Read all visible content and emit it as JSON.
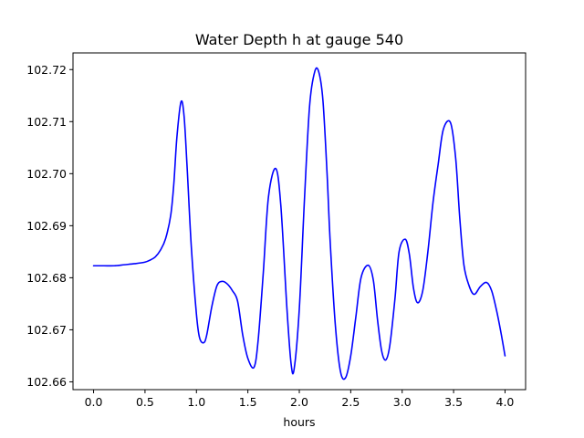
{
  "chart_data": {
    "type": "line",
    "title": "Water Depth h at gauge 540",
    "xlabel": "hours",
    "ylabel": "",
    "xlim": [
      -0.2,
      4.2
    ],
    "ylim": [
      102.6585,
      102.7232
    ],
    "xticks": [
      0.0,
      0.5,
      1.0,
      1.5,
      2.0,
      2.5,
      3.0,
      3.5,
      4.0
    ],
    "xtick_labels": [
      "0.0",
      "0.5",
      "1.0",
      "1.5",
      "2.0",
      "2.5",
      "3.0",
      "3.5",
      "4.0"
    ],
    "yticks": [
      102.66,
      102.67,
      102.68,
      102.69,
      102.7,
      102.71,
      102.72
    ],
    "ytick_labels": [
      "102.66",
      "102.67",
      "102.68",
      "102.69",
      "102.70",
      "102.71",
      "102.72"
    ],
    "grid": false,
    "color": "#0000ff",
    "series": [
      {
        "x": [
          0.0,
          0.1,
          0.2,
          0.3,
          0.4,
          0.5,
          0.55,
          0.6,
          0.65,
          0.7,
          0.75,
          0.78,
          0.81,
          0.85,
          0.88,
          0.91,
          0.95,
          1.0,
          1.03,
          1.07,
          1.1,
          1.15,
          1.2,
          1.25,
          1.3,
          1.35,
          1.4,
          1.45,
          1.5,
          1.56,
          1.6,
          1.65,
          1.7,
          1.77,
          1.82,
          1.88,
          1.92,
          1.95,
          2.0,
          2.05,
          2.1,
          2.15,
          2.19,
          2.23,
          2.27,
          2.3,
          2.35,
          2.4,
          2.45,
          2.5,
          2.55,
          2.6,
          2.67,
          2.72,
          2.76,
          2.8,
          2.84,
          2.88,
          2.93,
          2.97,
          3.03,
          3.07,
          3.11,
          3.15,
          3.2,
          3.25,
          3.3,
          3.35,
          3.4,
          3.47,
          3.52,
          3.56,
          3.6,
          3.65,
          3.7,
          3.76,
          3.82,
          3.87,
          3.92,
          3.96,
          4.0
        ],
        "y": [
          102.6823,
          102.6823,
          102.6823,
          102.6825,
          102.6827,
          102.683,
          102.6834,
          102.684,
          102.6853,
          102.6875,
          102.692,
          102.698,
          102.707,
          102.7138,
          102.711,
          102.701,
          102.686,
          102.673,
          102.6685,
          102.6675,
          102.669,
          102.6745,
          102.6785,
          102.6793,
          102.6788,
          102.6775,
          102.6755,
          102.669,
          102.6645,
          102.6628,
          102.668,
          102.681,
          102.6955,
          102.701,
          102.694,
          102.674,
          102.6635,
          102.6625,
          102.674,
          102.695,
          102.713,
          102.7196,
          102.7195,
          102.714,
          102.7,
          102.687,
          102.671,
          102.662,
          102.6608,
          102.665,
          102.6725,
          102.68,
          102.6824,
          102.6795,
          102.672,
          102.666,
          102.6642,
          102.667,
          102.676,
          102.685,
          102.6874,
          102.6845,
          102.678,
          102.6752,
          102.6775,
          102.685,
          102.6945,
          102.7018,
          102.7085,
          102.7098,
          102.703,
          102.6915,
          102.6825,
          102.6785,
          102.6768,
          102.6783,
          102.6791,
          102.6775,
          102.6735,
          102.6695,
          102.665
        ]
      }
    ]
  }
}
